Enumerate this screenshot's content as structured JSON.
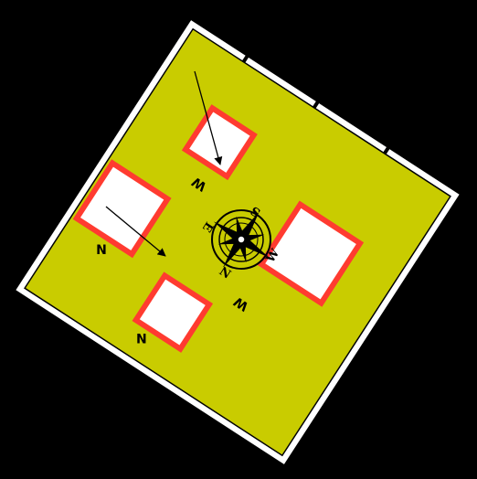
{
  "diagram": {
    "colors": {
      "background": "#000000",
      "board_border": "#ffffff",
      "board_fill": "#c9cc00",
      "room_outline": "#ff3b30",
      "room_fill": "#ffffff",
      "ink": "#000000"
    },
    "rooms": [
      {
        "id": "top",
        "label": "W"
      },
      {
        "id": "left",
        "label": "N"
      },
      {
        "id": "right",
        "label": "W"
      },
      {
        "id": "bottom",
        "label": "N"
      }
    ],
    "compass": {
      "icon": "compass-rose-icon",
      "letters": {
        "top": "S",
        "left": "E",
        "right": "W",
        "bottom": "N"
      }
    }
  }
}
